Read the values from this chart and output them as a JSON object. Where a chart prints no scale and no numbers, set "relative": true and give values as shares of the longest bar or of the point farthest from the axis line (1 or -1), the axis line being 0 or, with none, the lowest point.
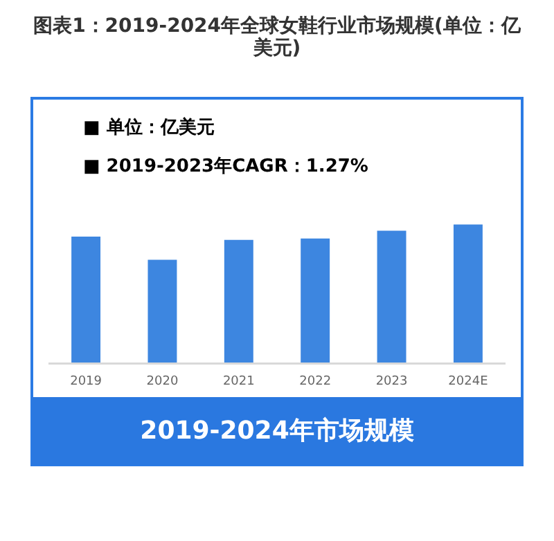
{
  "chart_data": {
    "type": "bar",
    "title": "图表1：2019-2024年全球女鞋行业市场规模(单位：亿美元)",
    "categories": [
      "2019",
      "2020",
      "2021",
      "2022",
      "2023",
      "2024E"
    ],
    "values": [
      0.913,
      0.747,
      0.89,
      0.9,
      0.956,
      1
    ],
    "color": "#3d86e0",
    "relative": true,
    "annotations": [
      "■  单位：亿美元",
      "■  2019-2023年CAGR：1.27%",
      "2019-2024年市场规模"
    ]
  }
}
